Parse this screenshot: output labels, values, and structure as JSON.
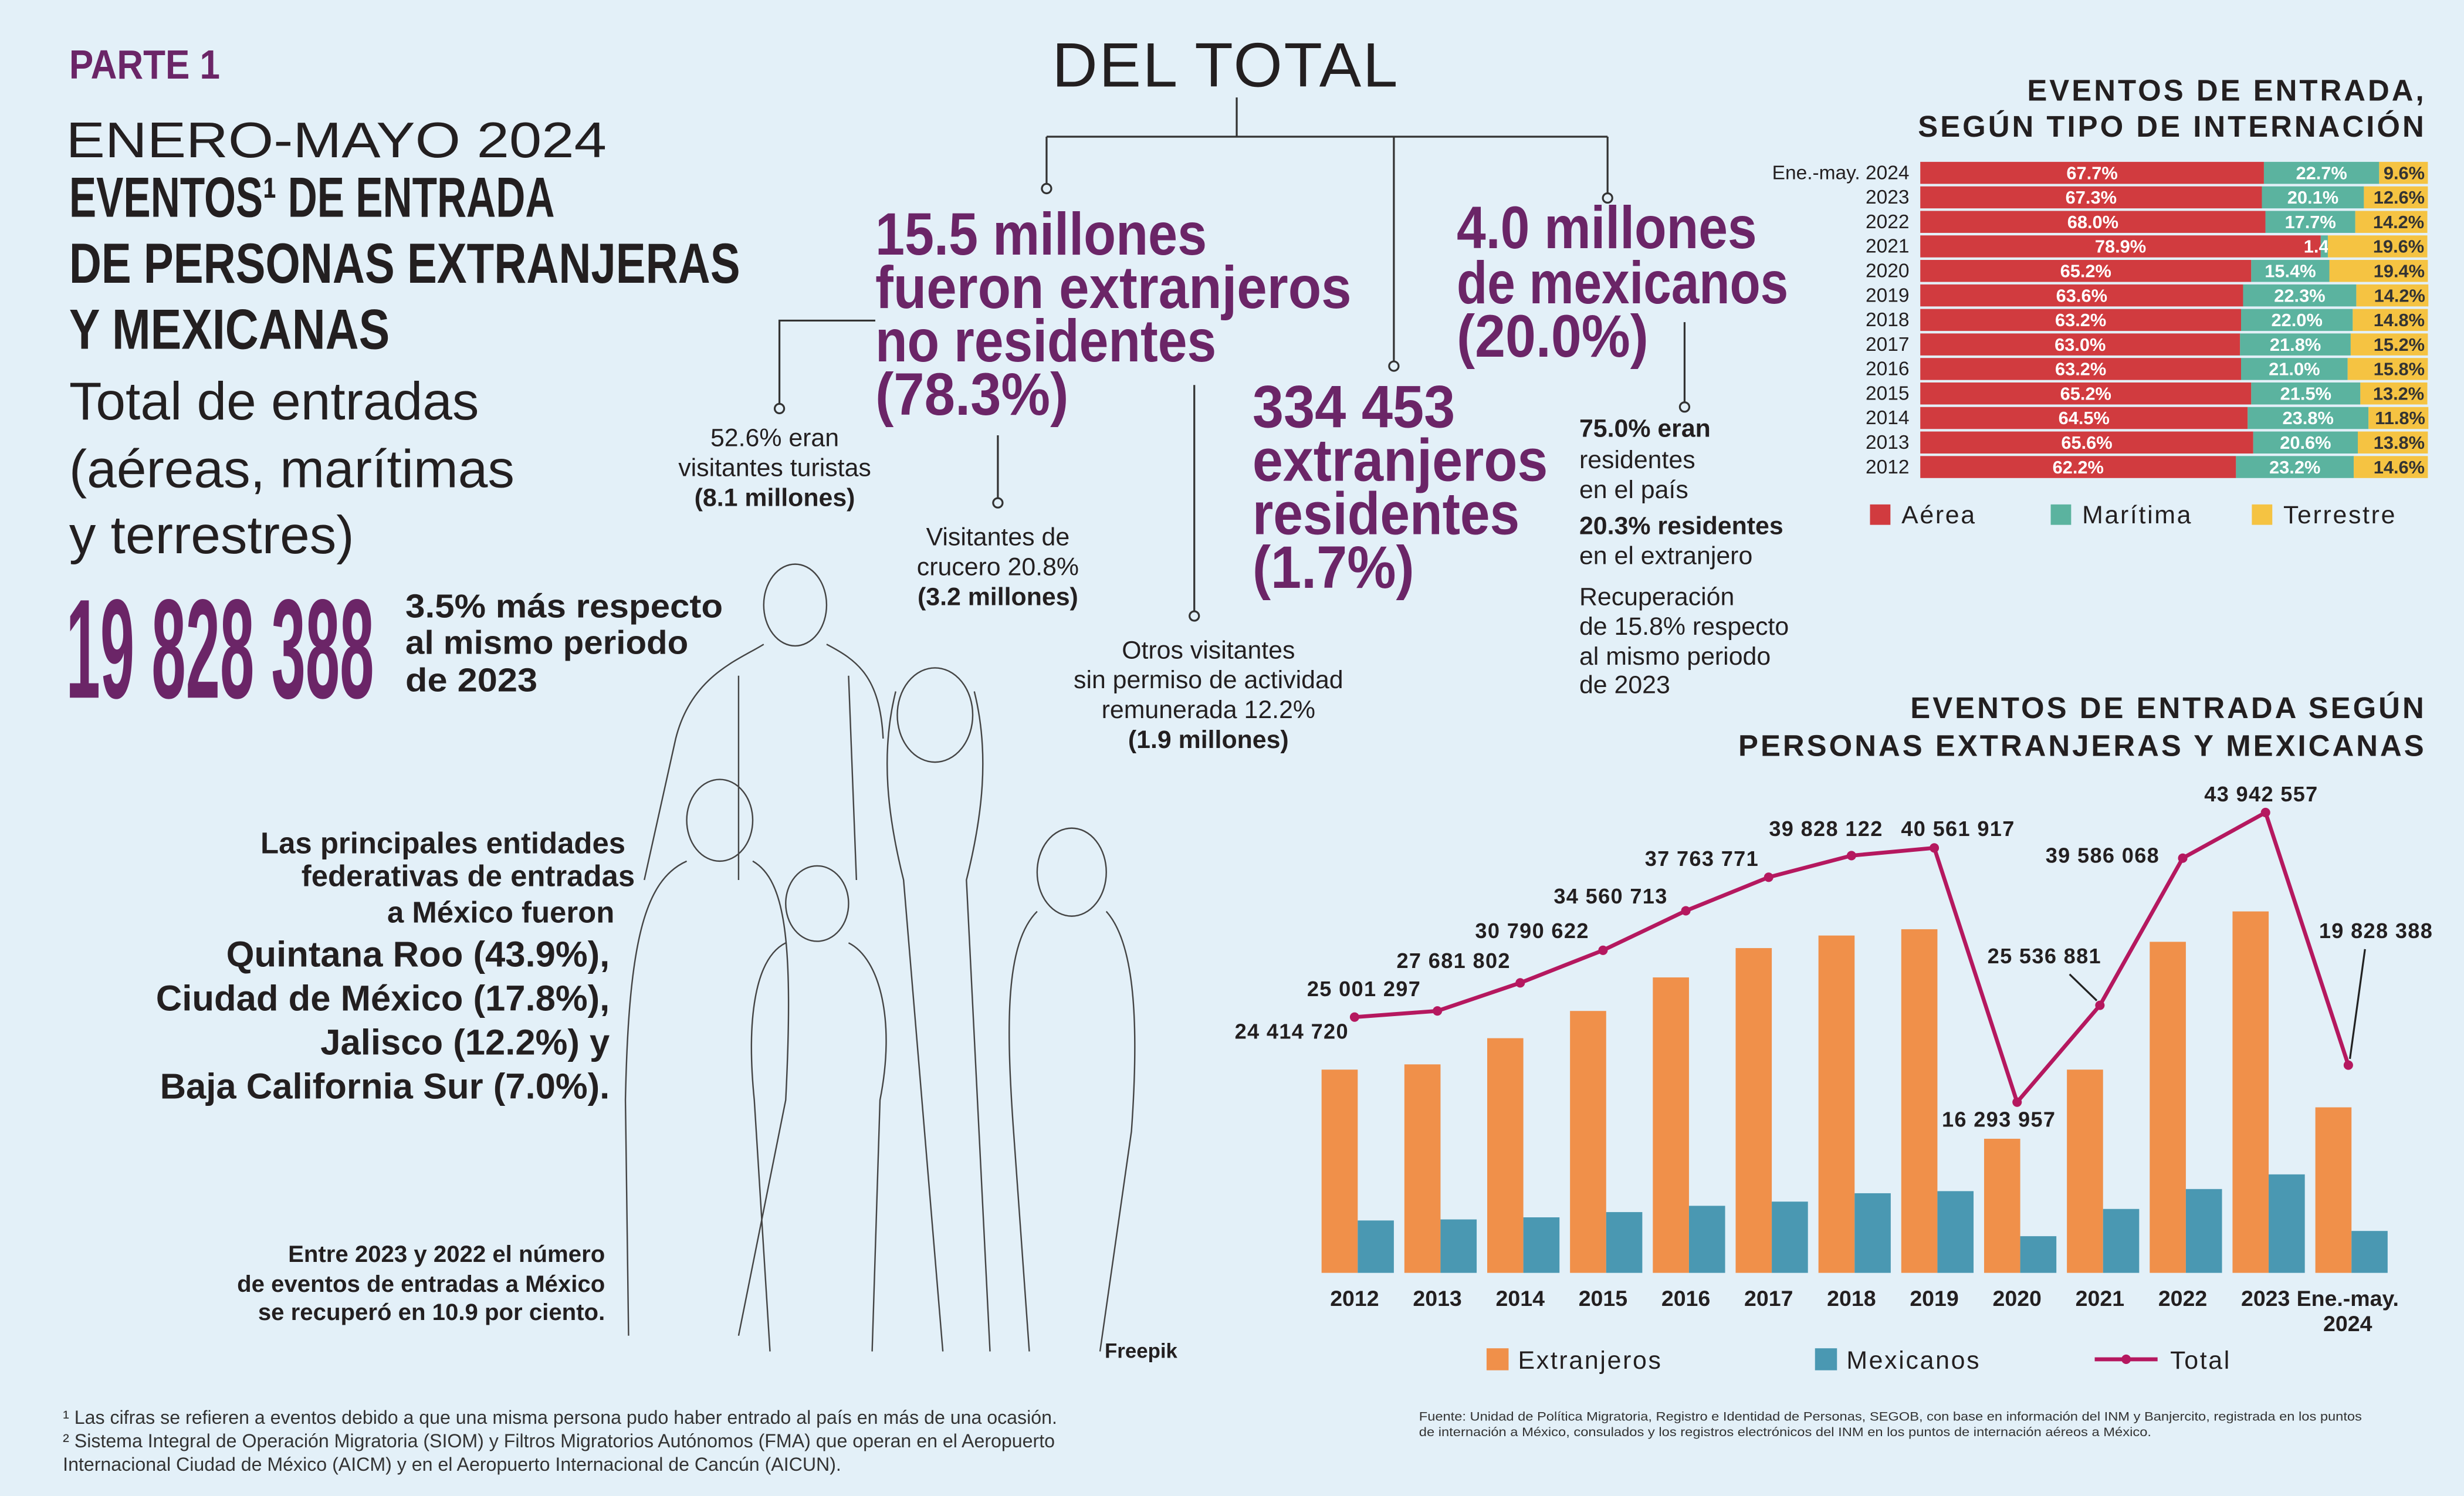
{
  "header": {
    "part": "PARTE 1",
    "period": "ENERO-MAYO 2024",
    "title": [
      "EVENTOS¹ DE ENTRADA",
      "DE PERSONAS EXTRANJERAS",
      "Y MEXICANAS"
    ],
    "subtitle": [
      "Total de entradas",
      "(aéreas, marítimas",
      "y terrestres)"
    ],
    "total": "19 828 388",
    "change": [
      "3.5% más respecto",
      "al mismo periodo",
      "de 2023"
    ]
  },
  "breakdown": {
    "title": "DEL TOTAL",
    "foreign_nonresident": [
      "15.5 millones",
      "fueron extranjeros",
      "no residentes",
      "(78.3%)"
    ],
    "foreign_resident": [
      "334 453",
      "extranjeros",
      "residentes",
      "(1.7%)"
    ],
    "mexicans": [
      "4.0 millones",
      "de mexicanos",
      "(20.0%)"
    ],
    "tourists": [
      "52.6% eran",
      "visitantes turistas",
      "(8.1 millones)"
    ],
    "cruise": [
      "Visitantes de",
      "crucero 20.8%",
      "(3.2 millones)"
    ],
    "others": [
      "Otros visitantes",
      "sin permiso de actividad",
      "remunerada 12.2%",
      "(1.9 millones)"
    ],
    "mexican_notes": [
      "75.0% eran",
      "residentes",
      "en el país",
      "20.3% residentes",
      "en el extranjero",
      "Recuperación",
      "de 15.8% respecto",
      "al mismo periodo",
      "de 2023"
    ]
  },
  "states": {
    "intro": [
      "Las principales entidades",
      "federativas de entradas",
      "a México fueron"
    ],
    "list": [
      "Quintana Roo (43.9%),",
      "Ciudad de México (17.8%),",
      "Jalisco (12.2%) y",
      "Baja California Sur (7.0%)."
    ]
  },
  "recovery": [
    "Entre 2023 y 2022 el número",
    "de eventos de entradas a México",
    "se recuperó en 10.9 por ciento."
  ],
  "credit": "Freepik",
  "footnotes": [
    "¹ Las cifras se refieren a eventos debido a que una misma persona pudo haber entrado al país en más de una ocasión.",
    "² Sistema Integral de Operación Migratoria (SIOM) y Filtros Migratorios Autónomos (FMA) que operan en el Aeropuerto",
    "Internacional Ciudad de México (AICM) y en el Aeropuerto Internacional de Cancún (AICUN)."
  ],
  "source": [
    "Fuente: Unidad de Política Migratoria, Registro e Identidad de Personas, SEGOB, con base en información del INM y Banjercito, registrada en los puntos",
    "de internación a México, consulados y los registros electrónicos del INM en los puntos de internación aéreos a México."
  ],
  "chart_data": [
    {
      "type": "stacked_bar_horizontal",
      "title": [
        "EVENTOS DE ENTRADA,",
        "SEGÚN TIPO DE INTERNACIÓN"
      ],
      "categories": [
        "Ene.-may. 2024",
        "2023",
        "2022",
        "2021",
        "2020",
        "2019",
        "2018",
        "2017",
        "2016",
        "2015",
        "2014",
        "2013",
        "2012"
      ],
      "xlim": [
        0,
        100
      ],
      "series": [
        {
          "name": "Aérea",
          "color": "#d13b3f",
          "values": [
            67.7,
            67.3,
            68.0,
            78.9,
            65.2,
            63.6,
            63.2,
            63.0,
            63.2,
            65.2,
            64.5,
            65.6,
            62.2
          ],
          "value_labels": [
            "67.7%",
            "67.3%",
            "68.0%",
            "78.9%",
            "65.2%",
            "63.6%",
            "63.2%",
            "63.0%",
            "63.2%",
            "65.2%",
            "64.5%",
            "65.6%",
            "62.2%"
          ]
        },
        {
          "name": "Marítima",
          "color": "#5bb39f",
          "values": [
            22.7,
            20.1,
            17.7,
            1.4,
            15.4,
            22.3,
            22.0,
            21.8,
            21.0,
            21.5,
            23.8,
            20.6,
            23.2
          ],
          "value_labels": [
            "22.7%",
            "20.1%",
            "17.7%",
            "1.4%",
            "15.4%",
            "22.3%",
            "22.0%",
            "21.8%",
            "21.0%",
            "21.5%",
            "23.8%",
            "20.6%",
            "23.2%"
          ]
        },
        {
          "name": "Terrestre",
          "color": "#f5c342",
          "values": [
            9.6,
            12.6,
            14.2,
            19.6,
            19.4,
            14.2,
            14.8,
            15.2,
            15.8,
            13.2,
            11.8,
            13.8,
            14.6
          ],
          "value_labels": [
            "9.6%",
            "12.6%",
            "14.2%",
            "19.6%",
            "19.4%",
            "14.2%",
            "14.8%",
            "15.2%",
            "15.8%",
            "13.2%",
            "11.8%",
            "13.8%",
            "14.6%"
          ]
        }
      ]
    },
    {
      "type": "bar_line",
      "title": [
        "EVENTOS DE ENTRADA SEGÚN",
        "PERSONAS EXTRANJERAS Y MEXICANAS"
      ],
      "categories": [
        "2012",
        "2013",
        "2014",
        "2015",
        "2016",
        "2017",
        "2018",
        "2019",
        "2020",
        "2021",
        "2022",
        "2023",
        "Ene.-may. 2024"
      ],
      "ylim": [
        0,
        48000000
      ],
      "series": [
        {
          "name": "Extranjeros",
          "color": "#f0904a",
          "kind": "bar",
          "values": [
            19400000,
            19900000,
            22400000,
            25000000,
            28200000,
            31000000,
            32200000,
            32800000,
            12800000,
            19400000,
            31600000,
            34500000,
            15800000
          ]
        },
        {
          "name": "Mexicanos",
          "color": "#4a98b2",
          "kind": "bar",
          "values": [
            5000000,
            5100000,
            5300000,
            5800000,
            6400000,
            6800000,
            7600000,
            7800000,
            3500000,
            6100000,
            8000000,
            9400000,
            4000000
          ]
        },
        {
          "name": "Total",
          "color": "#b5185f",
          "kind": "line",
          "values": [
            24414720,
            25001297,
            27681802,
            30790622,
            34560713,
            37763771,
            39828122,
            40561917,
            16293957,
            25536881,
            39586068,
            43942557,
            19828388
          ],
          "value_labels": [
            "24 414 720",
            "25 001 297",
            "27 681 802",
            "30 790 622",
            "34 560 713",
            "37 763 771",
            "39 828 122",
            "40 561 917",
            "16 293 957",
            "25 536 881",
            "39 586 068",
            "43 942 557",
            "19 828 388"
          ]
        }
      ]
    }
  ]
}
